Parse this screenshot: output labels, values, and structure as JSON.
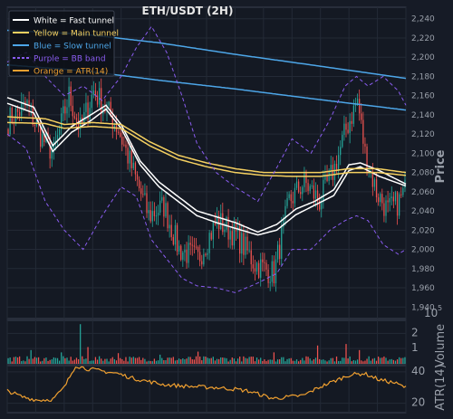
{
  "chart_data": [
    {
      "type": "candlestick",
      "title": "ETH/USDT (2H)",
      "ylabel": "Price",
      "ylim": [
        1928,
        2252
      ],
      "yticks": [
        1940,
        1960,
        1980,
        2000,
        2020,
        2040,
        2060,
        2080,
        2100,
        2120,
        2140,
        2160,
        2180,
        2200,
        2220,
        2240
      ],
      "grid": true,
      "legend_position": "top-left",
      "legend": [
        {
          "label": "White = Fast tunnel",
          "color": "#ffffff",
          "style": "solid"
        },
        {
          "label": "Yellow = Main tunnel",
          "color": "#f5d060",
          "style": "solid"
        },
        {
          "label": "Blue = Slow tunnel",
          "color": "#4da6e8",
          "style": "solid"
        },
        {
          "label": "Purple = BB band",
          "color": "#8a5cf0",
          "style": "dashed"
        },
        {
          "label": "Orange = ATR(14)",
          "color": "#f0a030",
          "style": "solid"
        }
      ],
      "colors": {
        "up": "#26a69a",
        "down": "#ef5350"
      },
      "price_anchors": [
        [
          0,
          2134
        ],
        [
          10,
          2150
        ],
        [
          18,
          2115
        ],
        [
          24,
          2100
        ],
        [
          32,
          2160
        ],
        [
          38,
          2125
        ],
        [
          45,
          2165
        ],
        [
          52,
          2145
        ],
        [
          58,
          2125
        ],
        [
          66,
          2080
        ],
        [
          74,
          2035
        ],
        [
          82,
          2045
        ],
        [
          90,
          2000
        ],
        [
          100,
          1990
        ],
        [
          110,
          2030
        ],
        [
          120,
          2015
        ],
        [
          130,
          1985
        ],
        [
          140,
          1975
        ],
        [
          148,
          2050
        ],
        [
          156,
          2070
        ],
        [
          164,
          2050
        ],
        [
          172,
          2085
        ],
        [
          178,
          2125
        ],
        [
          184,
          2155
        ],
        [
          188,
          2100
        ],
        [
          194,
          2060
        ],
        [
          200,
          2040
        ],
        [
          206,
          2050
        ],
        [
          210,
          2065
        ]
      ],
      "series": [
        {
          "name": "Fast tunnel",
          "color": "#ffffff",
          "points": [
            [
              0,
              2158
            ],
            [
              14,
              2148
            ],
            [
              24,
              2108
            ],
            [
              34,
              2128
            ],
            [
              44,
              2140
            ],
            [
              52,
              2150
            ],
            [
              60,
              2130
            ],
            [
              70,
              2092
            ],
            [
              80,
              2070
            ],
            [
              90,
              2055
            ],
            [
              100,
              2040
            ],
            [
              110,
              2034
            ],
            [
              120,
              2028
            ],
            [
              132,
              2018
            ],
            [
              142,
              2026
            ],
            [
              152,
              2042
            ],
            [
              162,
              2050
            ],
            [
              172,
              2062
            ],
            [
              180,
              2088
            ],
            [
              186,
              2090
            ],
            [
              196,
              2082
            ],
            [
              210,
              2068
            ]
          ]
        },
        {
          "name": "Fast tunnel",
          "color": "#ffffff",
          "points": [
            [
              0,
              2152
            ],
            [
              14,
              2142
            ],
            [
              24,
              2102
            ],
            [
              34,
              2122
            ],
            [
              44,
              2134
            ],
            [
              52,
              2146
            ],
            [
              60,
              2126
            ],
            [
              70,
              2088
            ],
            [
              80,
              2065
            ],
            [
              90,
              2050
            ],
            [
              100,
              2035
            ],
            [
              110,
              2028
            ],
            [
              120,
              2022
            ],
            [
              132,
              2015
            ],
            [
              142,
              2020
            ],
            [
              152,
              2036
            ],
            [
              162,
              2046
            ],
            [
              172,
              2056
            ],
            [
              180,
              2082
            ],
            [
              186,
              2086
            ],
            [
              196,
              2076
            ],
            [
              210,
              2066
            ]
          ]
        },
        {
          "name": "Main tunnel",
          "color": "#f5d060",
          "points": [
            [
              0,
              2138
            ],
            [
              20,
              2136
            ],
            [
              30,
              2130
            ],
            [
              45,
              2132
            ],
            [
              60,
              2130
            ],
            [
              75,
              2112
            ],
            [
              90,
              2098
            ],
            [
              105,
              2090
            ],
            [
              120,
              2084
            ],
            [
              135,
              2080
            ],
            [
              150,
              2080
            ],
            [
              165,
              2080
            ],
            [
              180,
              2084
            ],
            [
              195,
              2084
            ],
            [
              210,
              2080
            ]
          ]
        },
        {
          "name": "Main tunnel",
          "color": "#f5d060",
          "points": [
            [
              0,
              2132
            ],
            [
              20,
              2131
            ],
            [
              30,
              2126
            ],
            [
              45,
              2128
            ],
            [
              60,
              2126
            ],
            [
              75,
              2108
            ],
            [
              90,
              2094
            ],
            [
              105,
              2086
            ],
            [
              120,
              2080
            ],
            [
              135,
              2077
            ],
            [
              150,
              2076
            ],
            [
              165,
              2076
            ],
            [
              180,
              2080
            ],
            [
              195,
              2080
            ],
            [
              210,
              2077
            ]
          ]
        },
        {
          "name": "Slow tunnel",
          "color": "#4da6e8",
          "points": [
            [
              0,
              2228
            ],
            [
              40,
              2224
            ],
            [
              80,
              2215
            ],
            [
              120,
              2203
            ],
            [
              160,
              2192
            ],
            [
              210,
              2178
            ]
          ]
        },
        {
          "name": "Slow tunnel",
          "color": "#4da6e8",
          "points": [
            [
              0,
              2192
            ],
            [
              40,
              2186
            ],
            [
              80,
              2176
            ],
            [
              120,
              2167
            ],
            [
              160,
              2157
            ],
            [
              210,
              2145
            ]
          ]
        },
        {
          "name": "BB band",
          "color": "#8a5cf0",
          "points": [
            [
              0,
              2195
            ],
            [
              10,
              2205
            ],
            [
              20,
              2180
            ],
            [
              30,
              2160
            ],
            [
              40,
              2170
            ],
            [
              50,
              2155
            ],
            [
              60,
              2180
            ],
            [
              68,
              2210
            ],
            [
              76,
              2232
            ],
            [
              84,
              2205
            ],
            [
              92,
              2160
            ],
            [
              100,
              2110
            ],
            [
              110,
              2080
            ],
            [
              120,
              2065
            ],
            [
              132,
              2050
            ],
            [
              142,
              2085
            ],
            [
              150,
              2115
            ],
            [
              160,
              2100
            ],
            [
              170,
              2135
            ],
            [
              178,
              2170
            ],
            [
              184,
              2180
            ],
            [
              190,
              2170
            ],
            [
              198,
              2180
            ],
            [
              206,
              2165
            ],
            [
              210,
              2150
            ]
          ]
        },
        {
          "name": "BB band",
          "color": "#8a5cf0",
          "points": [
            [
              0,
              2120
            ],
            [
              10,
              2105
            ],
            [
              20,
              2050
            ],
            [
              30,
              2020
            ],
            [
              40,
              2000
            ],
            [
              50,
              2035
            ],
            [
              60,
              2065
            ],
            [
              68,
              2055
            ],
            [
              76,
              2010
            ],
            [
              84,
              1990
            ],
            [
              92,
              1970
            ],
            [
              100,
              1962
            ],
            [
              110,
              1960
            ],
            [
              120,
              1955
            ],
            [
              132,
              1965
            ],
            [
              142,
              1975
            ],
            [
              150,
              2000
            ],
            [
              160,
              2000
            ],
            [
              170,
              2020
            ],
            [
              178,
              2030
            ],
            [
              184,
              2035
            ],
            [
              190,
              2030
            ],
            [
              198,
              2005
            ],
            [
              206,
              1995
            ],
            [
              210,
              2000
            ]
          ]
        }
      ]
    },
    {
      "type": "bar",
      "ylabel": "Volume",
      "multiplier": "1e5",
      "ylim": [
        0,
        2.85
      ],
      "yticks": [
        1,
        2
      ],
      "grid": true,
      "spikes": [
        [
          12,
          0.9
        ],
        [
          28,
          0.75
        ],
        [
          38,
          2.6
        ],
        [
          42,
          1.1
        ],
        [
          58,
          0.7
        ],
        [
          80,
          0.6
        ],
        [
          100,
          0.8
        ],
        [
          140,
          0.75
        ],
        [
          163,
          1.2
        ],
        [
          178,
          1.3
        ],
        [
          185,
          0.9
        ]
      ]
    },
    {
      "type": "line",
      "ylabel": "ATR(14)",
      "ylim": [
        14,
        44
      ],
      "yticks": [
        20,
        40
      ],
      "grid": true,
      "series": [
        {
          "name": "ATR(14)",
          "color": "#f0a030",
          "points": [
            [
              0,
              28
            ],
            [
              8,
              24
            ],
            [
              16,
              22
            ],
            [
              24,
              22.5
            ],
            [
              30,
              30
            ],
            [
              36,
              44
            ],
            [
              42,
              42
            ],
            [
              50,
              40.5
            ],
            [
              58,
              39
            ],
            [
              66,
              36
            ],
            [
              74,
              34
            ],
            [
              82,
              32
            ],
            [
              92,
              31
            ],
            [
              100,
              30.5
            ],
            [
              110,
              30
            ],
            [
              120,
              29
            ],
            [
              126,
              28
            ],
            [
              132,
              26
            ],
            [
              140,
              23
            ],
            [
              148,
              24
            ],
            [
              156,
              25
            ],
            [
              164,
              30
            ],
            [
              172,
              34
            ],
            [
              180,
              38
            ],
            [
              188,
              39
            ],
            [
              196,
              35
            ],
            [
              204,
              33
            ],
            [
              210,
              30
            ]
          ]
        }
      ]
    }
  ]
}
